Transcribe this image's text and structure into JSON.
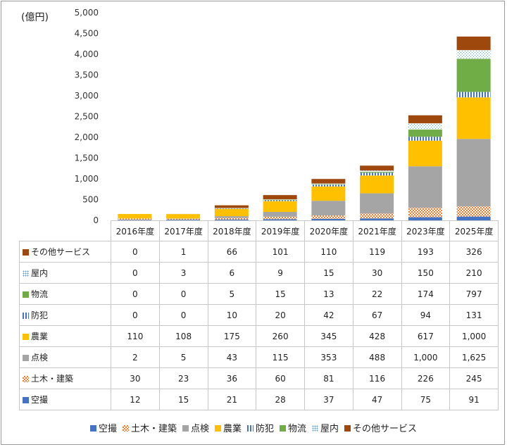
{
  "chart_data": {
    "type": "bar",
    "stacked": true,
    "unit_label": "(億円)",
    "ylim": [
      0,
      5000
    ],
    "y_ticks": [
      "5,000",
      "4,500",
      "4,000",
      "3,500",
      "3,000",
      "2,500",
      "2,000",
      "1,500",
      "1,000",
      "500",
      "0"
    ],
    "y_tick_values": [
      5000,
      4500,
      4000,
      3500,
      3000,
      2500,
      2000,
      1500,
      1000,
      500,
      0
    ],
    "categories": [
      "2016年度",
      "2017年度",
      "2018年度",
      "2019年度",
      "2020年度",
      "2021年度",
      "2023年度",
      "2025年度"
    ],
    "series": [
      {
        "name": "空撮",
        "color": "#4472C4",
        "pattern": "solid",
        "values": [
          12,
          15,
          21,
          28,
          37,
          47,
          75,
          91
        ]
      },
      {
        "name": "土木・建築",
        "color": "#ED7D31",
        "pattern": "check",
        "values": [
          30,
          23,
          36,
          60,
          81,
          116,
          226,
          245
        ]
      },
      {
        "name": "点検",
        "color": "#A5A5A5",
        "pattern": "solid",
        "values": [
          2,
          5,
          43,
          115,
          353,
          488,
          1000,
          1625
        ]
      },
      {
        "name": "農業",
        "color": "#FFC000",
        "pattern": "solid",
        "values": [
          110,
          108,
          175,
          260,
          345,
          428,
          617,
          1000
        ]
      },
      {
        "name": "防犯",
        "color": "#4472C4",
        "pattern": "vstripe",
        "values": [
          0,
          0,
          10,
          20,
          42,
          67,
          94,
          131
        ]
      },
      {
        "name": "物流",
        "color": "#70AD47",
        "pattern": "solid",
        "values": [
          0,
          0,
          5,
          15,
          13,
          22,
          174,
          797
        ]
      },
      {
        "name": "屋内",
        "color": "#5B9BD5",
        "pattern": "dots",
        "values": [
          0,
          3,
          6,
          9,
          15,
          30,
          150,
          210
        ]
      },
      {
        "name": "その他サービス",
        "color": "#9E480E",
        "pattern": "solid",
        "values": [
          0,
          1,
          66,
          101,
          110,
          119,
          193,
          326
        ]
      }
    ],
    "table_rows": [
      {
        "name": "その他サービス",
        "cells": [
          "0",
          "1",
          "66",
          "101",
          "110",
          "119",
          "193",
          "326"
        ]
      },
      {
        "name": "屋内",
        "cells": [
          "0",
          "3",
          "6",
          "9",
          "15",
          "30",
          "150",
          "210"
        ]
      },
      {
        "name": "物流",
        "cells": [
          "0",
          "0",
          "5",
          "15",
          "13",
          "22",
          "174",
          "797"
        ]
      },
      {
        "name": "防犯",
        "cells": [
          "0",
          "0",
          "10",
          "20",
          "42",
          "67",
          "94",
          "131"
        ]
      },
      {
        "name": "農業",
        "cells": [
          "110",
          "108",
          "175",
          "260",
          "345",
          "428",
          "617",
          "1,000"
        ]
      },
      {
        "name": "点検",
        "cells": [
          "2",
          "5",
          "43",
          "115",
          "353",
          "488",
          "1,000",
          "1,625"
        ]
      },
      {
        "name": "土木・建築",
        "cells": [
          "30",
          "23",
          "36",
          "60",
          "81",
          "116",
          "226",
          "245"
        ]
      },
      {
        "name": "空撮",
        "cells": [
          "12",
          "15",
          "21",
          "28",
          "37",
          "47",
          "75",
          "91"
        ]
      }
    ],
    "grid": false,
    "legend_position": "bottom"
  }
}
